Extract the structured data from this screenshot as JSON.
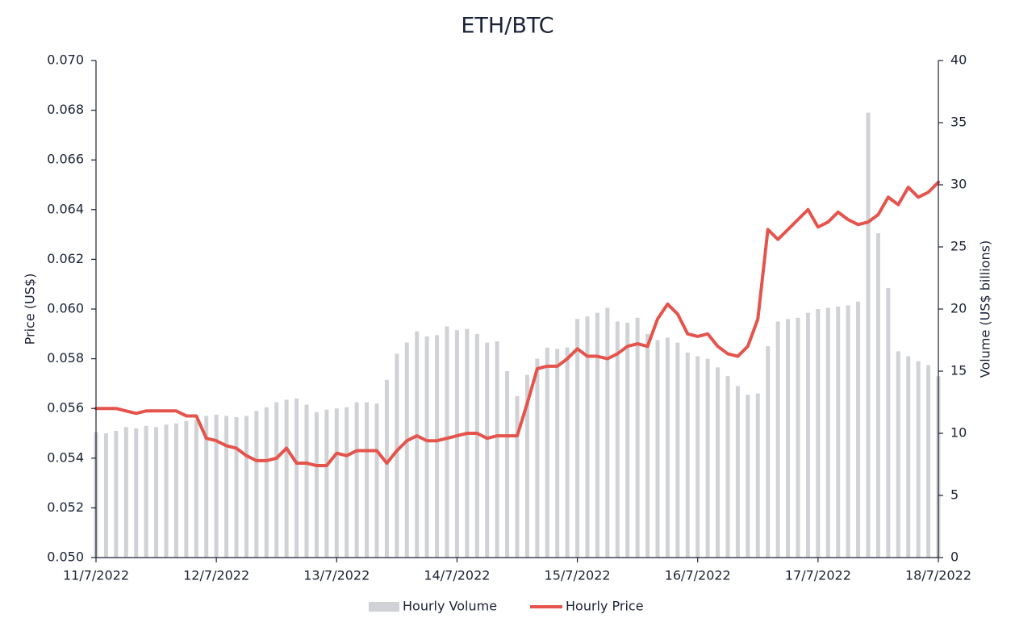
{
  "chart_data": {
    "type": "combo",
    "title": "ETH/BTC",
    "ylabel": "Price (US$)",
    "y2label": "Volume (US$ billions)",
    "categories": [
      "11/7/2022",
      null,
      null,
      null,
      null,
      null,
      null,
      null,
      null,
      null,
      null,
      null,
      "12/7/2022",
      null,
      null,
      null,
      null,
      null,
      null,
      null,
      null,
      null,
      null,
      null,
      "13/7/2022",
      null,
      null,
      null,
      null,
      null,
      null,
      null,
      null,
      null,
      null,
      null,
      "14/7/2022",
      null,
      null,
      null,
      null,
      null,
      null,
      null,
      null,
      null,
      null,
      null,
      "15/7/2022",
      null,
      null,
      null,
      null,
      null,
      null,
      null,
      null,
      null,
      null,
      null,
      "16/7/2022",
      null,
      null,
      null,
      null,
      null,
      null,
      null,
      null,
      null,
      null,
      null,
      "17/7/2022",
      null,
      null,
      null,
      null,
      null,
      null,
      null,
      null,
      null,
      null,
      null,
      "18/7/2022"
    ],
    "series": [
      {
        "name": "Hourly Volume",
        "type": "bar",
        "axis": "y2",
        "color": "#d0d2d5",
        "values": [
          10.1,
          10.0,
          10.2,
          10.5,
          10.4,
          10.6,
          10.5,
          10.7,
          10.8,
          11.0,
          11.1,
          11.4,
          11.5,
          11.4,
          11.3,
          11.4,
          11.8,
          12.1,
          12.5,
          12.7,
          12.8,
          12.3,
          11.7,
          11.9,
          12.0,
          12.1,
          12.5,
          12.5,
          12.4,
          14.3,
          16.4,
          17.3,
          18.2,
          17.8,
          17.9,
          18.6,
          18.3,
          18.4,
          18.0,
          17.3,
          17.4,
          15.0,
          13.0,
          14.7,
          16.0,
          16.9,
          16.8,
          16.9,
          19.2,
          19.4,
          19.7,
          20.1,
          19.0,
          18.9,
          19.3,
          18.0,
          17.5,
          17.7,
          17.3,
          16.5,
          16.2,
          16.0,
          15.3,
          14.6,
          13.8,
          13.1,
          13.2,
          17.0,
          19.0,
          19.2,
          19.3,
          19.7,
          20.0,
          20.1,
          20.2,
          20.3,
          20.6,
          35.8,
          26.1,
          21.7,
          16.6,
          16.2,
          15.8,
          15.5,
          14.6
        ]
      },
      {
        "name": "Hourly Price",
        "type": "line",
        "color": "#e5544c",
        "values": [
          0.056,
          0.056,
          0.056,
          0.0559,
          0.0558,
          0.0559,
          0.0559,
          0.0559,
          0.0559,
          0.0557,
          0.0557,
          0.0548,
          0.0547,
          0.0545,
          0.0544,
          0.0541,
          0.0539,
          0.0539,
          0.054,
          0.0544,
          0.0538,
          0.0538,
          0.0537,
          0.0537,
          0.0542,
          0.0541,
          0.0543,
          0.0543,
          0.0543,
          0.0538,
          0.0543,
          0.0547,
          0.0549,
          0.0547,
          0.0547,
          0.0548,
          0.0549,
          0.055,
          0.055,
          0.0548,
          0.0549,
          0.0549,
          0.0549,
          0.0562,
          0.0576,
          0.0577,
          0.0577,
          0.058,
          0.0584,
          0.0581,
          0.0581,
          0.058,
          0.0582,
          0.0585,
          0.0586,
          0.0585,
          0.0596,
          0.0602,
          0.0598,
          0.059,
          0.0589,
          0.059,
          0.0585,
          0.0582,
          0.0581,
          0.0585,
          0.0596,
          0.0632,
          0.0628,
          0.0632,
          0.0636,
          0.064,
          0.0633,
          0.0635,
          0.0639,
          0.0636,
          0.0634,
          0.0635,
          0.0638,
          0.0645,
          0.0642,
          0.0649,
          0.0645,
          0.0647,
          0.0651
        ]
      }
    ],
    "ylim": [
      0.05,
      0.07
    ],
    "yticks": [
      {
        "value": 0.05,
        "label": "0.050"
      },
      0.052,
      0.054,
      0.056,
      0.058,
      {
        "value": 0.06,
        "label": "0.060"
      },
      0.062,
      0.064,
      0.066,
      0.068,
      {
        "value": 0.07,
        "label": "0.070"
      }
    ],
    "y2lim": [
      0,
      40
    ],
    "y2ticks": [
      0,
      5,
      10,
      15,
      20,
      25,
      30,
      35,
      40
    ],
    "grid": false,
    "legend": "bottom"
  }
}
